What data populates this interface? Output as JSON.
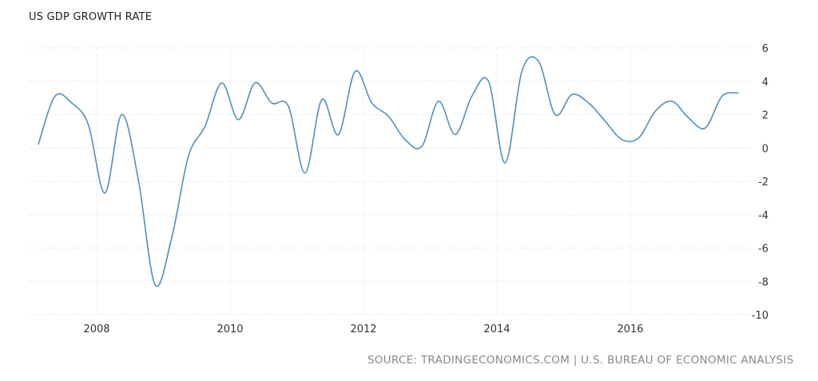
{
  "chart_data": {
    "type": "line",
    "title": "US GDP GROWTH RATE",
    "source": "SOURCE: TRADINGECONOMICS.COM | U.S. BUREAU OF ECONOMIC ANALYSIS",
    "xlabel": "",
    "ylabel": "",
    "ylim": [
      -10,
      6
    ],
    "yticks": [
      "6",
      "4",
      "2",
      "0",
      "-2",
      "-4",
      "-6",
      "-8",
      "-10"
    ],
    "xticks": [
      "2008",
      "2010",
      "2012",
      "2014",
      "2016"
    ],
    "grid": true,
    "line_color": "#4f8fc0",
    "series": [
      {
        "x": [
          "2007Q1",
          "2007Q2",
          "2007Q3",
          "2007Q4",
          "2008Q1",
          "2008Q2",
          "2008Q3",
          "2008Q4",
          "2009Q1",
          "2009Q2",
          "2009Q3",
          "2009Q4",
          "2010Q1",
          "2010Q2",
          "2010Q3",
          "2010Q4",
          "2011Q1",
          "2011Q2",
          "2011Q3",
          "2011Q4",
          "2012Q1",
          "2012Q2",
          "2012Q3",
          "2012Q4",
          "2013Q1",
          "2013Q2",
          "2013Q3",
          "2013Q4",
          "2014Q1",
          "2014Q2",
          "2014Q3",
          "2014Q4",
          "2015Q1",
          "2015Q2",
          "2015Q3",
          "2015Q4",
          "2016Q1",
          "2016Q2",
          "2016Q3",
          "2016Q4",
          "2017Q1",
          "2017Q2",
          "2017Q3"
        ],
        "values": [
          0.2,
          3.1,
          2.7,
          1.4,
          -2.7,
          2.0,
          -1.9,
          -8.2,
          -5.4,
          -0.5,
          1.3,
          3.9,
          1.7,
          3.9,
          2.7,
          2.5,
          -1.5,
          2.9,
          0.8,
          4.6,
          2.7,
          1.9,
          0.5,
          0.1,
          2.8,
          0.8,
          3.1,
          4.0,
          -0.9,
          4.6,
          5.2,
          2.0,
          3.2,
          2.7,
          1.6,
          0.5,
          0.6,
          2.2,
          2.8,
          1.8,
          1.2,
          3.1,
          3.3
        ]
      }
    ]
  }
}
